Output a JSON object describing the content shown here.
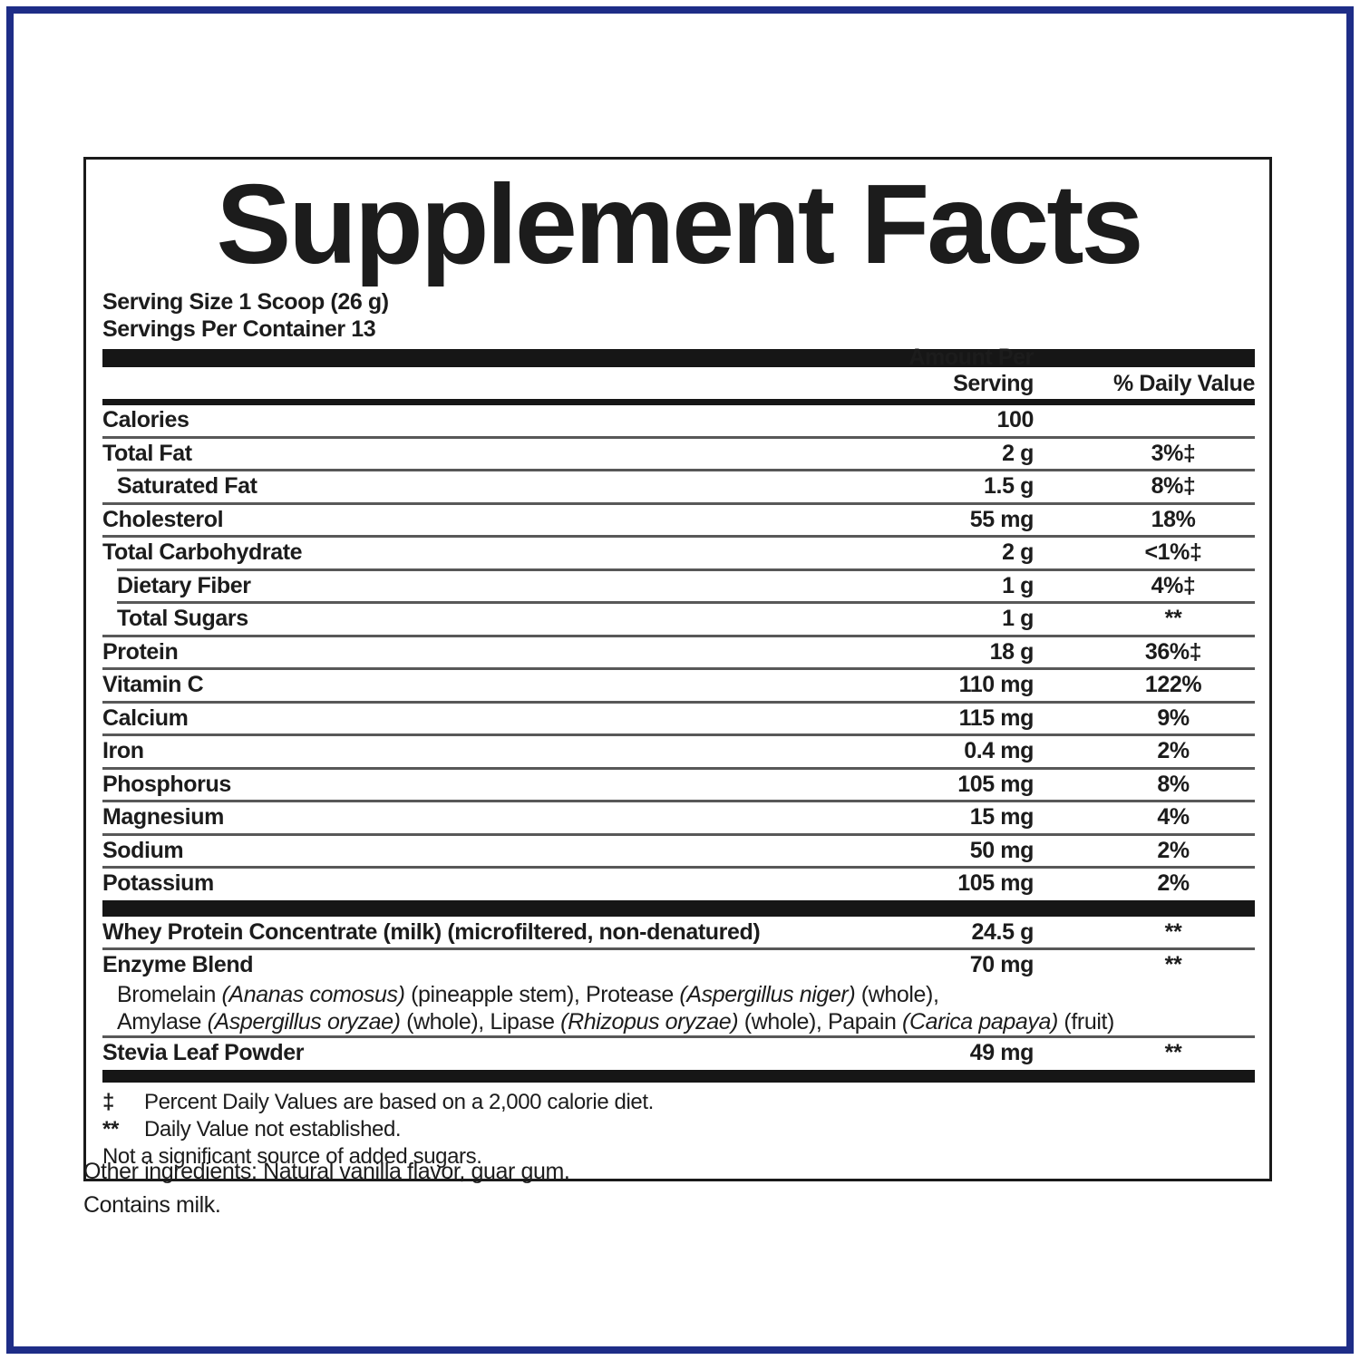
{
  "colors": {
    "frame_border": "#1e2d87",
    "bar": "#161616",
    "hairline": "#585858",
    "text": "#1c1c1c"
  },
  "panel": {
    "title": "Supplement Facts",
    "serving_size": "Serving Size 1 Scoop (26 g)",
    "servings_per_container": "Servings Per Container 13",
    "header": {
      "amount": "Amount Per Serving",
      "dv": "% Daily Value"
    },
    "rows": [
      {
        "label": "Calories",
        "amount": "100",
        "dv": "",
        "indent": false
      },
      {
        "label": "Total Fat",
        "amount": "2 g",
        "dv": "3%‡",
        "indent": false
      },
      {
        "label": "Saturated Fat",
        "amount": "1.5 g",
        "dv": "8%‡",
        "indent": true
      },
      {
        "label": "Cholesterol",
        "amount": "55 mg",
        "dv": "18%",
        "indent": false
      },
      {
        "label": "Total Carbohydrate",
        "amount": "2 g",
        "dv": "<1%‡",
        "indent": false
      },
      {
        "label": "Dietary Fiber",
        "amount": "1 g",
        "dv": "4%‡",
        "indent": true
      },
      {
        "label": "Total Sugars",
        "amount": "1 g",
        "dv": "**",
        "indent": true
      },
      {
        "label": "Protein",
        "amount": "18 g",
        "dv": "36%‡",
        "indent": false
      },
      {
        "label": "Vitamin C",
        "amount": "110 mg",
        "dv": "122%",
        "indent": false
      },
      {
        "label": "Calcium",
        "amount": "115 mg",
        "dv": "9%",
        "indent": false
      },
      {
        "label": "Iron",
        "amount": "0.4 mg",
        "dv": "2%",
        "indent": false
      },
      {
        "label": "Phosphorus",
        "amount": "105 mg",
        "dv": "8%",
        "indent": false
      },
      {
        "label": "Magnesium",
        "amount": "15 mg",
        "dv": "4%",
        "indent": false
      },
      {
        "label": "Sodium",
        "amount": "50 mg",
        "dv": "2%",
        "indent": false
      },
      {
        "label": "Potassium",
        "amount": "105 mg",
        "dv": "2%",
        "indent": false
      }
    ],
    "supplement_rows": [
      {
        "label": "Whey Protein Concentrate (milk) (microfiltered, non-denatured)",
        "amount": "24.5 g",
        "dv": "**"
      },
      {
        "label": "Enzyme Blend",
        "amount": "70 mg",
        "dv": "**",
        "sublines": [
          [
            {
              "t": "Bromelain "
            },
            {
              "t": "(Ananas comosus)",
              "i": true
            },
            {
              "t": " (pineapple stem), Protease "
            },
            {
              "t": "(Aspergillus niger)",
              "i": true
            },
            {
              "t": " (whole),"
            }
          ],
          [
            {
              "t": "Amylase "
            },
            {
              "t": "(Aspergillus oryzae)",
              "i": true
            },
            {
              "t": " (whole), Lipase "
            },
            {
              "t": "(Rhizopus oryzae)",
              "i": true
            },
            {
              "t": " (whole), Papain "
            },
            {
              "t": "(Carica papaya)",
              "i": true
            },
            {
              "t": " (fruit)"
            }
          ]
        ]
      },
      {
        "label": "Stevia Leaf Powder",
        "amount": "49 mg",
        "dv": "**"
      }
    ],
    "footnotes": [
      {
        "symbol": "‡",
        "text": "Percent Daily Values are based on a 2,000 calorie diet."
      },
      {
        "symbol": "**",
        "text": "Daily Value not established."
      },
      {
        "symbol": "",
        "text": "Not a significant source of added sugars."
      }
    ]
  },
  "below": {
    "other_ingredients": "Other ingredients: Natural vanilla flavor, guar gum.",
    "contains": "Contains milk."
  }
}
